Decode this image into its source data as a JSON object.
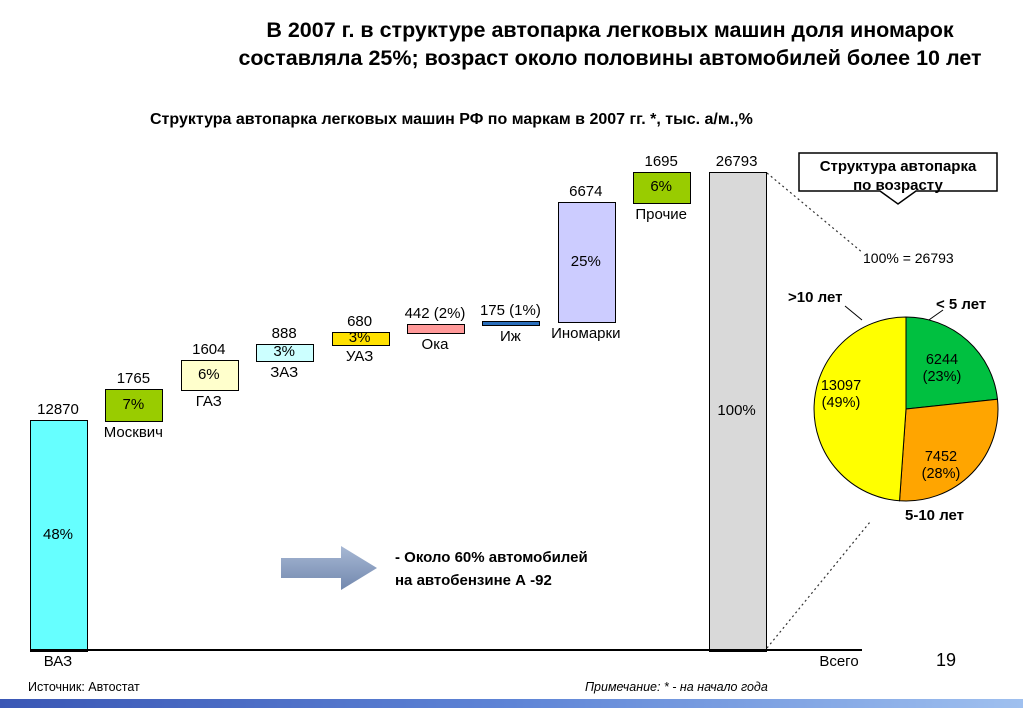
{
  "slide": {
    "title_line1": "В 2007 г. в структуре автопарка легковых машин доля иномарок",
    "title_line2": "составляла 25%; возраст около половины автомобилей более 10 лет",
    "page_number": "19",
    "source": "Источник: Автостат",
    "note": "Примечание: * - на начало года"
  },
  "annotation": {
    "line1": "- Около 60% автомобилей",
    "line2": "на автобензине А -92"
  },
  "chart_data": [
    {
      "type": "bar",
      "subtype": "waterfall",
      "title": "Структура автопарка легковых машин РФ по маркам в  2007 гг. *, тыс. а/м.,%",
      "unit": "тыс. а/м., %",
      "total": 26793,
      "categories": [
        "ВАЗ",
        "Москвич",
        "ГАЗ",
        "ЗАЗ",
        "УАЗ",
        "Ока",
        "Иж",
        "Иномарки",
        "Прочие",
        "Всего"
      ],
      "values": [
        12870,
        1765,
        1604,
        888,
        680,
        442,
        175,
        6674,
        1695,
        26793
      ],
      "value_labels": [
        "12870",
        "1765",
        "1604",
        "888",
        "680",
        "442 (2%)",
        "175 (1%)",
        "6674",
        "1695",
        "26793"
      ],
      "percent_labels": [
        "48%",
        "7%",
        "6%",
        "3%",
        "3%",
        "",
        "",
        "25%",
        "6%",
        "100%"
      ],
      "colors": [
        "#66FFFF",
        "#99CC00",
        "#FFFFCC",
        "#CCFFFF",
        "#FFE100",
        "#FF9999",
        "#2A6EBB",
        "#CCCCFF",
        "#99CC00",
        "#D9D9D9"
      ],
      "is_total": [
        false,
        false,
        false,
        false,
        false,
        false,
        false,
        false,
        false,
        true
      ]
    },
    {
      "type": "pie",
      "callout": {
        "line1": "Структура автопарка",
        "line2": "по возрасту"
      },
      "total_label": "100% = 26793",
      "slices": [
        {
          "label": "< 5 лет",
          "value": 6244,
          "pct": "23%",
          "color": "#00C040"
        },
        {
          "label": "5-10 лет",
          "value": 7452,
          "pct": "28%",
          "color": "#FFA500"
        },
        {
          "label": ">10 лет",
          "value": 13097,
          "pct": "49%",
          "color": "#FFFF00"
        }
      ],
      "start_angle_deg": -90,
      "direction": "clockwise",
      "legend_position": "outside"
    }
  ]
}
